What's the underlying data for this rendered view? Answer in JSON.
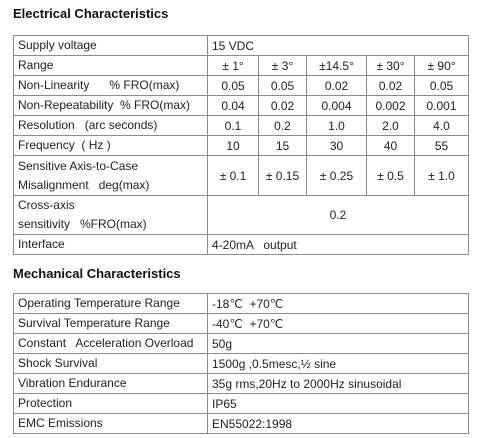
{
  "electrical": {
    "title": "Electrical Characteristics",
    "rows": [
      {
        "label": [
          "Supply voltage"
        ],
        "value": "15 VDC"
      },
      {
        "label": [
          "Range"
        ],
        "cells": [
          "± 1°",
          "± 3°",
          "±14.5°",
          "± 30°",
          "± 90°"
        ]
      },
      {
        "label": [
          "Non-Linearity      % FRO(max)"
        ],
        "cells": [
          "0.05",
          "0.05",
          "0.02",
          "0.02",
          "0.05"
        ]
      },
      {
        "label": [
          "Non-Repeatability  % FRO(max)"
        ],
        "cells": [
          "0.04",
          "0.02",
          "0.004",
          "0.002",
          "0.001"
        ]
      },
      {
        "label": [
          "Resolution   (arc seconds)"
        ],
        "cells": [
          "0.1",
          "0.2",
          "1.0",
          "2.0",
          "4.0"
        ]
      },
      {
        "label": [
          "Frequency  ( Hz )"
        ],
        "cells": [
          "10",
          "15",
          "30",
          "40",
          "55"
        ]
      },
      {
        "label": [
          "Sensitive Axis-to-Case",
          "Misalignment   deg(max)"
        ],
        "cells": [
          "± 0.1",
          "± 0.15",
          "± 0.25",
          "± 0.5",
          "± 1.0"
        ]
      },
      {
        "label": [
          "Cross-axis",
          "sensitivity   %FRO(max)"
        ],
        "value": "0.2"
      },
      {
        "label": [
          "Interface"
        ],
        "value": "4-20mA   output"
      }
    ]
  },
  "mechanical": {
    "title": "Mechanical Characteristics",
    "rows": [
      {
        "label": [
          "Operating Temperature Range"
        ],
        "value": "-18℃  +70℃"
      },
      {
        "label": [
          "Survival Temperature Range"
        ],
        "value": "-40℃  +70℃"
      },
      {
        "label": [
          "Constant   Acceleration Overload"
        ],
        "value": "50g"
      },
      {
        "label": [
          "Shock Survival"
        ],
        "value": "1500g ,0.5mesc,½ sine"
      },
      {
        "label": [
          "Vibration Endurance"
        ],
        "value": "35g rms,20Hz to 2000Hz sinusoidal"
      },
      {
        "label": [
          "Protection"
        ],
        "value": "IP65"
      },
      {
        "label": [
          "EMC Emissions"
        ],
        "value": "EN55022:1998"
      }
    ]
  }
}
